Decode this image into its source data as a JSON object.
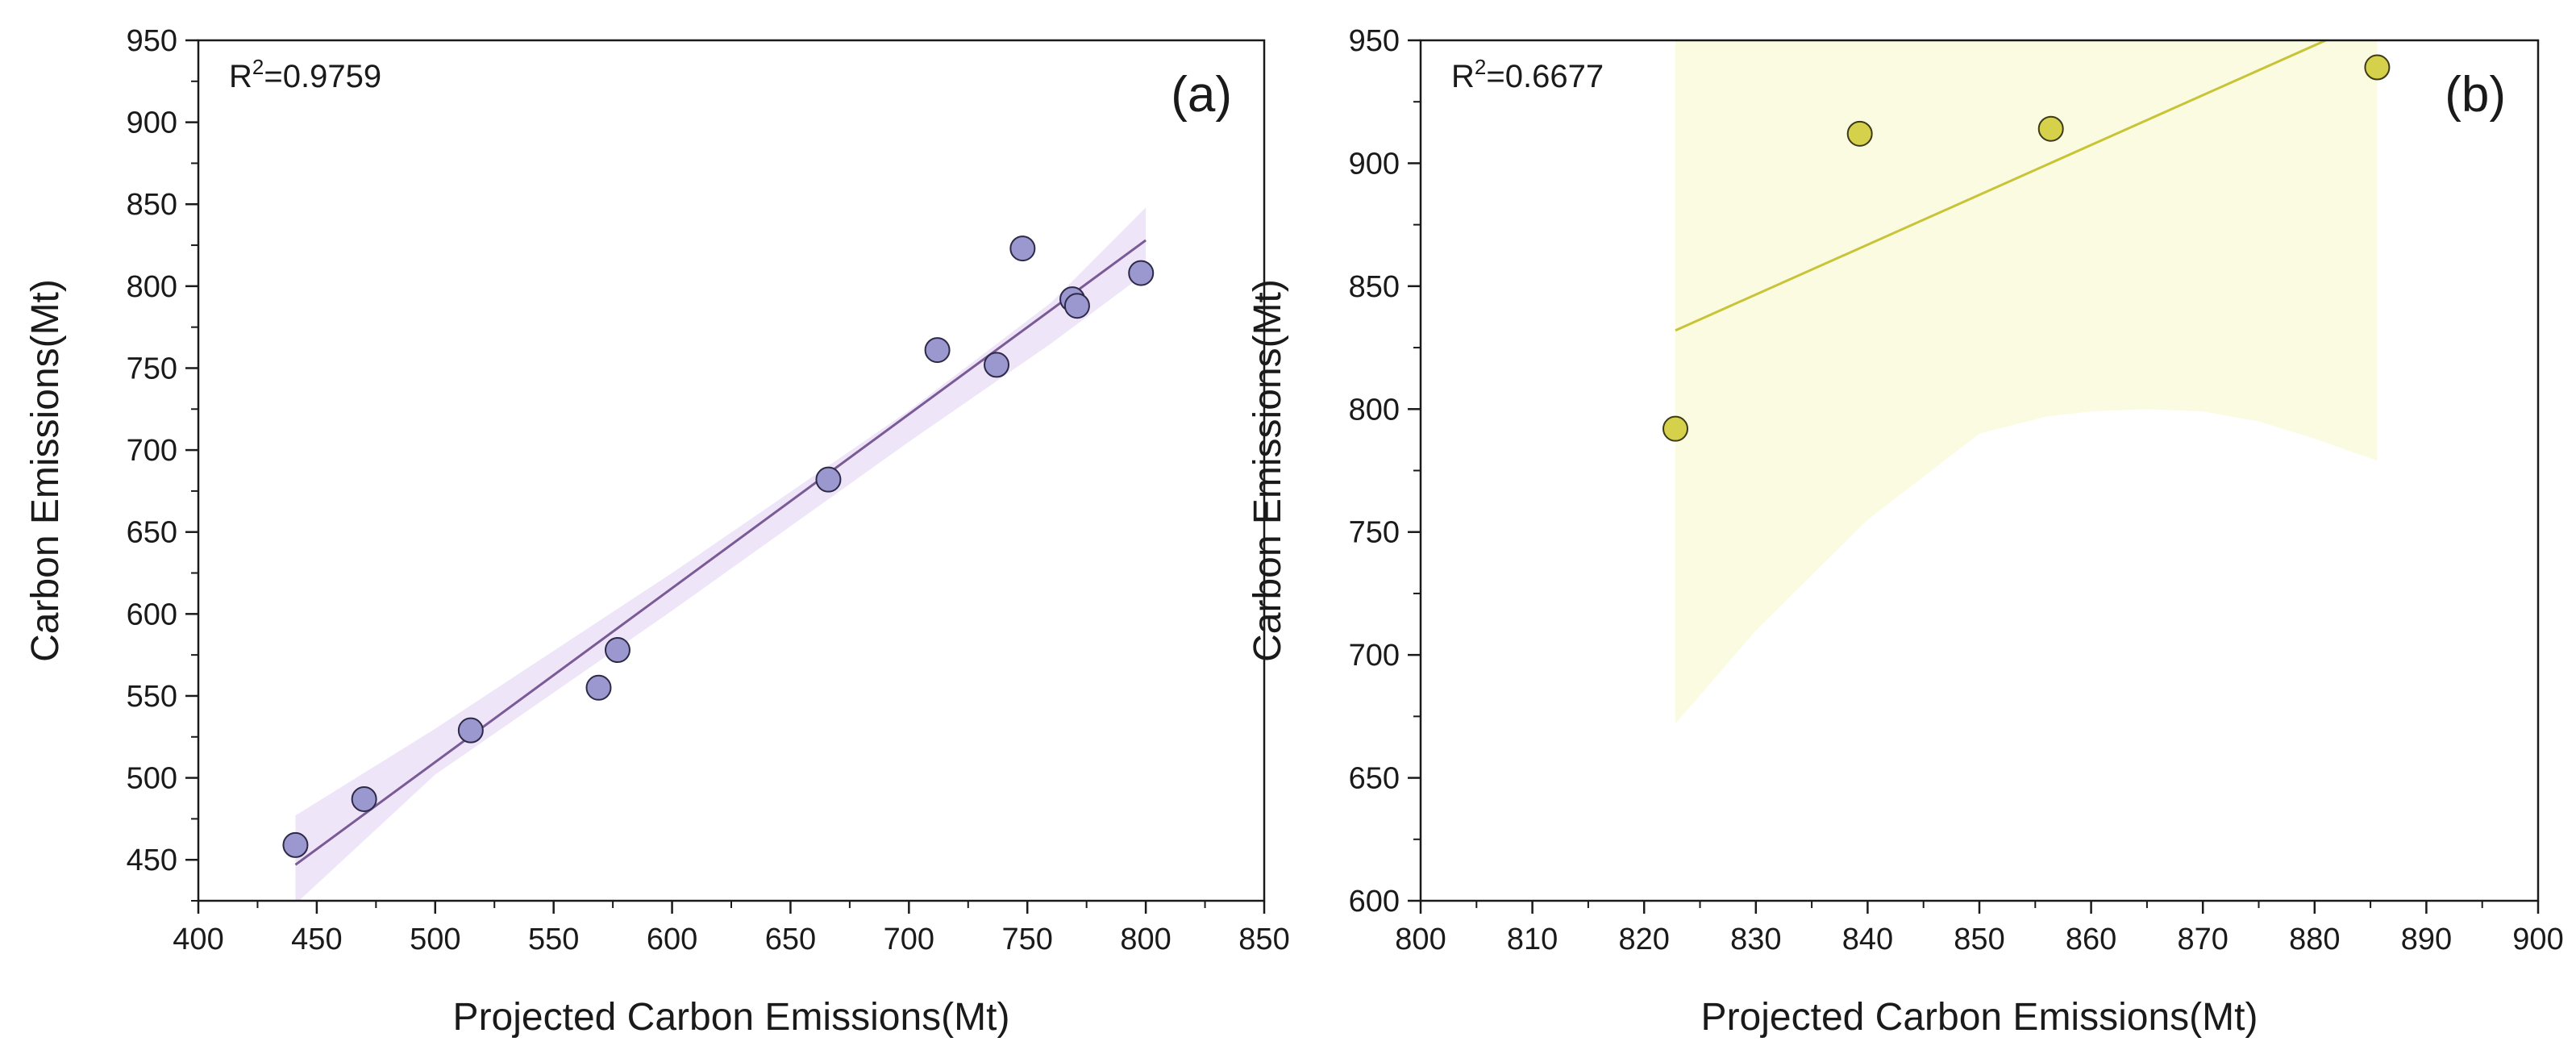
{
  "chart_data": [
    {
      "type": "scatter",
      "panel_label": "(a)",
      "r2_label": "R",
      "r2_sup": "2",
      "r2_value": "=0.9759",
      "xlabel": "Projected Carbon Emissions(Mt)",
      "ylabel": "Carbon Emissions(Mt)",
      "xlim": [
        400,
        850
      ],
      "ylim": [
        425,
        950
      ],
      "xticks": [
        400,
        450,
        500,
        550,
        600,
        650,
        700,
        750,
        800,
        850
      ],
      "yticks": [
        450,
        500,
        550,
        600,
        650,
        700,
        750,
        800,
        850,
        900,
        950
      ],
      "points": [
        {
          "x": 441,
          "y": 459
        },
        {
          "x": 470,
          "y": 487
        },
        {
          "x": 515,
          "y": 529
        },
        {
          "x": 569,
          "y": 555
        },
        {
          "x": 577,
          "y": 578
        },
        {
          "x": 666,
          "y": 682
        },
        {
          "x": 712,
          "y": 761
        },
        {
          "x": 737,
          "y": 752
        },
        {
          "x": 748,
          "y": 823
        },
        {
          "x": 769,
          "y": 792
        },
        {
          "x": 771,
          "y": 788
        },
        {
          "x": 798,
          "y": 808
        }
      ],
      "fit_line": {
        "x": [
          441,
          800
        ],
        "y": [
          447,
          828
        ]
      },
      "band_upper": {
        "x": [
          441,
          500,
          600,
          700,
          760,
          800
        ],
        "y": [
          477,
          530,
          625,
          724,
          790,
          848
        ]
      },
      "band_lower": {
        "x": [
          441,
          500,
          600,
          700,
          760,
          800
        ],
        "y": [
          423,
          502,
          602,
          705,
          765,
          808
        ]
      },
      "colors": {
        "marker": "#9b97cf",
        "edge": "#2d2a48",
        "line": "#7b5b96",
        "band": "#efe5f8"
      }
    },
    {
      "type": "scatter",
      "panel_label": "(b)",
      "r2_label": "R",
      "r2_sup": "2",
      "r2_value": "=0.6677",
      "xlabel": "Projected Carbon Emissions(Mt)",
      "ylabel": "Carbon Emissions(Mt)",
      "xlim": [
        800,
        900
      ],
      "ylim": [
        600,
        950
      ],
      "xticks": [
        800,
        810,
        820,
        830,
        840,
        850,
        860,
        870,
        880,
        890,
        900
      ],
      "yticks": [
        600,
        650,
        700,
        750,
        800,
        850,
        900,
        950
      ],
      "points": [
        {
          "x": 822.8,
          "y": 792
        },
        {
          "x": 839.3,
          "y": 912
        },
        {
          "x": 856.4,
          "y": 914
        },
        {
          "x": 885.6,
          "y": 939
        }
      ],
      "fit_line": {
        "x": [
          822.8,
          881
        ],
        "y": [
          832,
          950
        ]
      },
      "band_upper": {
        "x": [
          822.8,
          885.6
        ],
        "y": [
          950,
          950
        ]
      },
      "band_lower": {
        "x": [
          822.8,
          830,
          840,
          850,
          856,
          860,
          865,
          870,
          875,
          880,
          885.6
        ],
        "y": [
          672,
          710,
          755,
          790,
          797,
          799,
          800,
          799,
          795,
          788,
          779
        ]
      },
      "colors": {
        "marker": "#d6d14a",
        "edge": "#3c3a18",
        "line": "#c8c337",
        "band": "#fbfbe1"
      }
    }
  ]
}
